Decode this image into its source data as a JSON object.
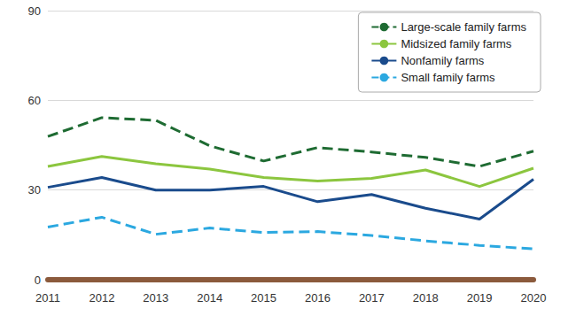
{
  "chart_data": {
    "type": "line",
    "categories": [
      "2011",
      "2012",
      "2013",
      "2014",
      "2015",
      "2016",
      "2017",
      "2018",
      "2019",
      "2020"
    ],
    "series": [
      {
        "name": "Large-scale family farms",
        "color": "#1e6b32",
        "line_style": "dashed",
        "values": [
          47.9,
          54.2,
          53.3,
          44.8,
          39.7,
          44.2,
          42.7,
          40.9,
          37.9,
          43.0
        ]
      },
      {
        "name": "Midsized family farms",
        "color": "#8cc63f",
        "line_style": "solid",
        "values": [
          37.9,
          41.2,
          38.8,
          37.0,
          34.2,
          33.0,
          33.9,
          36.7,
          31.2,
          37.3
        ]
      },
      {
        "name": "Nonfamily farms",
        "color": "#1a4b8c",
        "line_style": "solid",
        "values": [
          30.9,
          34.2,
          30.0,
          30.0,
          31.2,
          26.1,
          28.5,
          23.9,
          20.3,
          33.6
        ]
      },
      {
        "name": "Small family farms",
        "color": "#2ba8e0",
        "line_style": "dashed",
        "values": [
          17.6,
          20.9,
          15.2,
          17.3,
          15.8,
          16.1,
          14.8,
          13.0,
          11.5,
          10.3
        ]
      }
    ],
    "ylim": [
      0,
      90
    ],
    "yticks": [
      0,
      30,
      60,
      90
    ],
    "grid": true,
    "legend": "upper right"
  }
}
